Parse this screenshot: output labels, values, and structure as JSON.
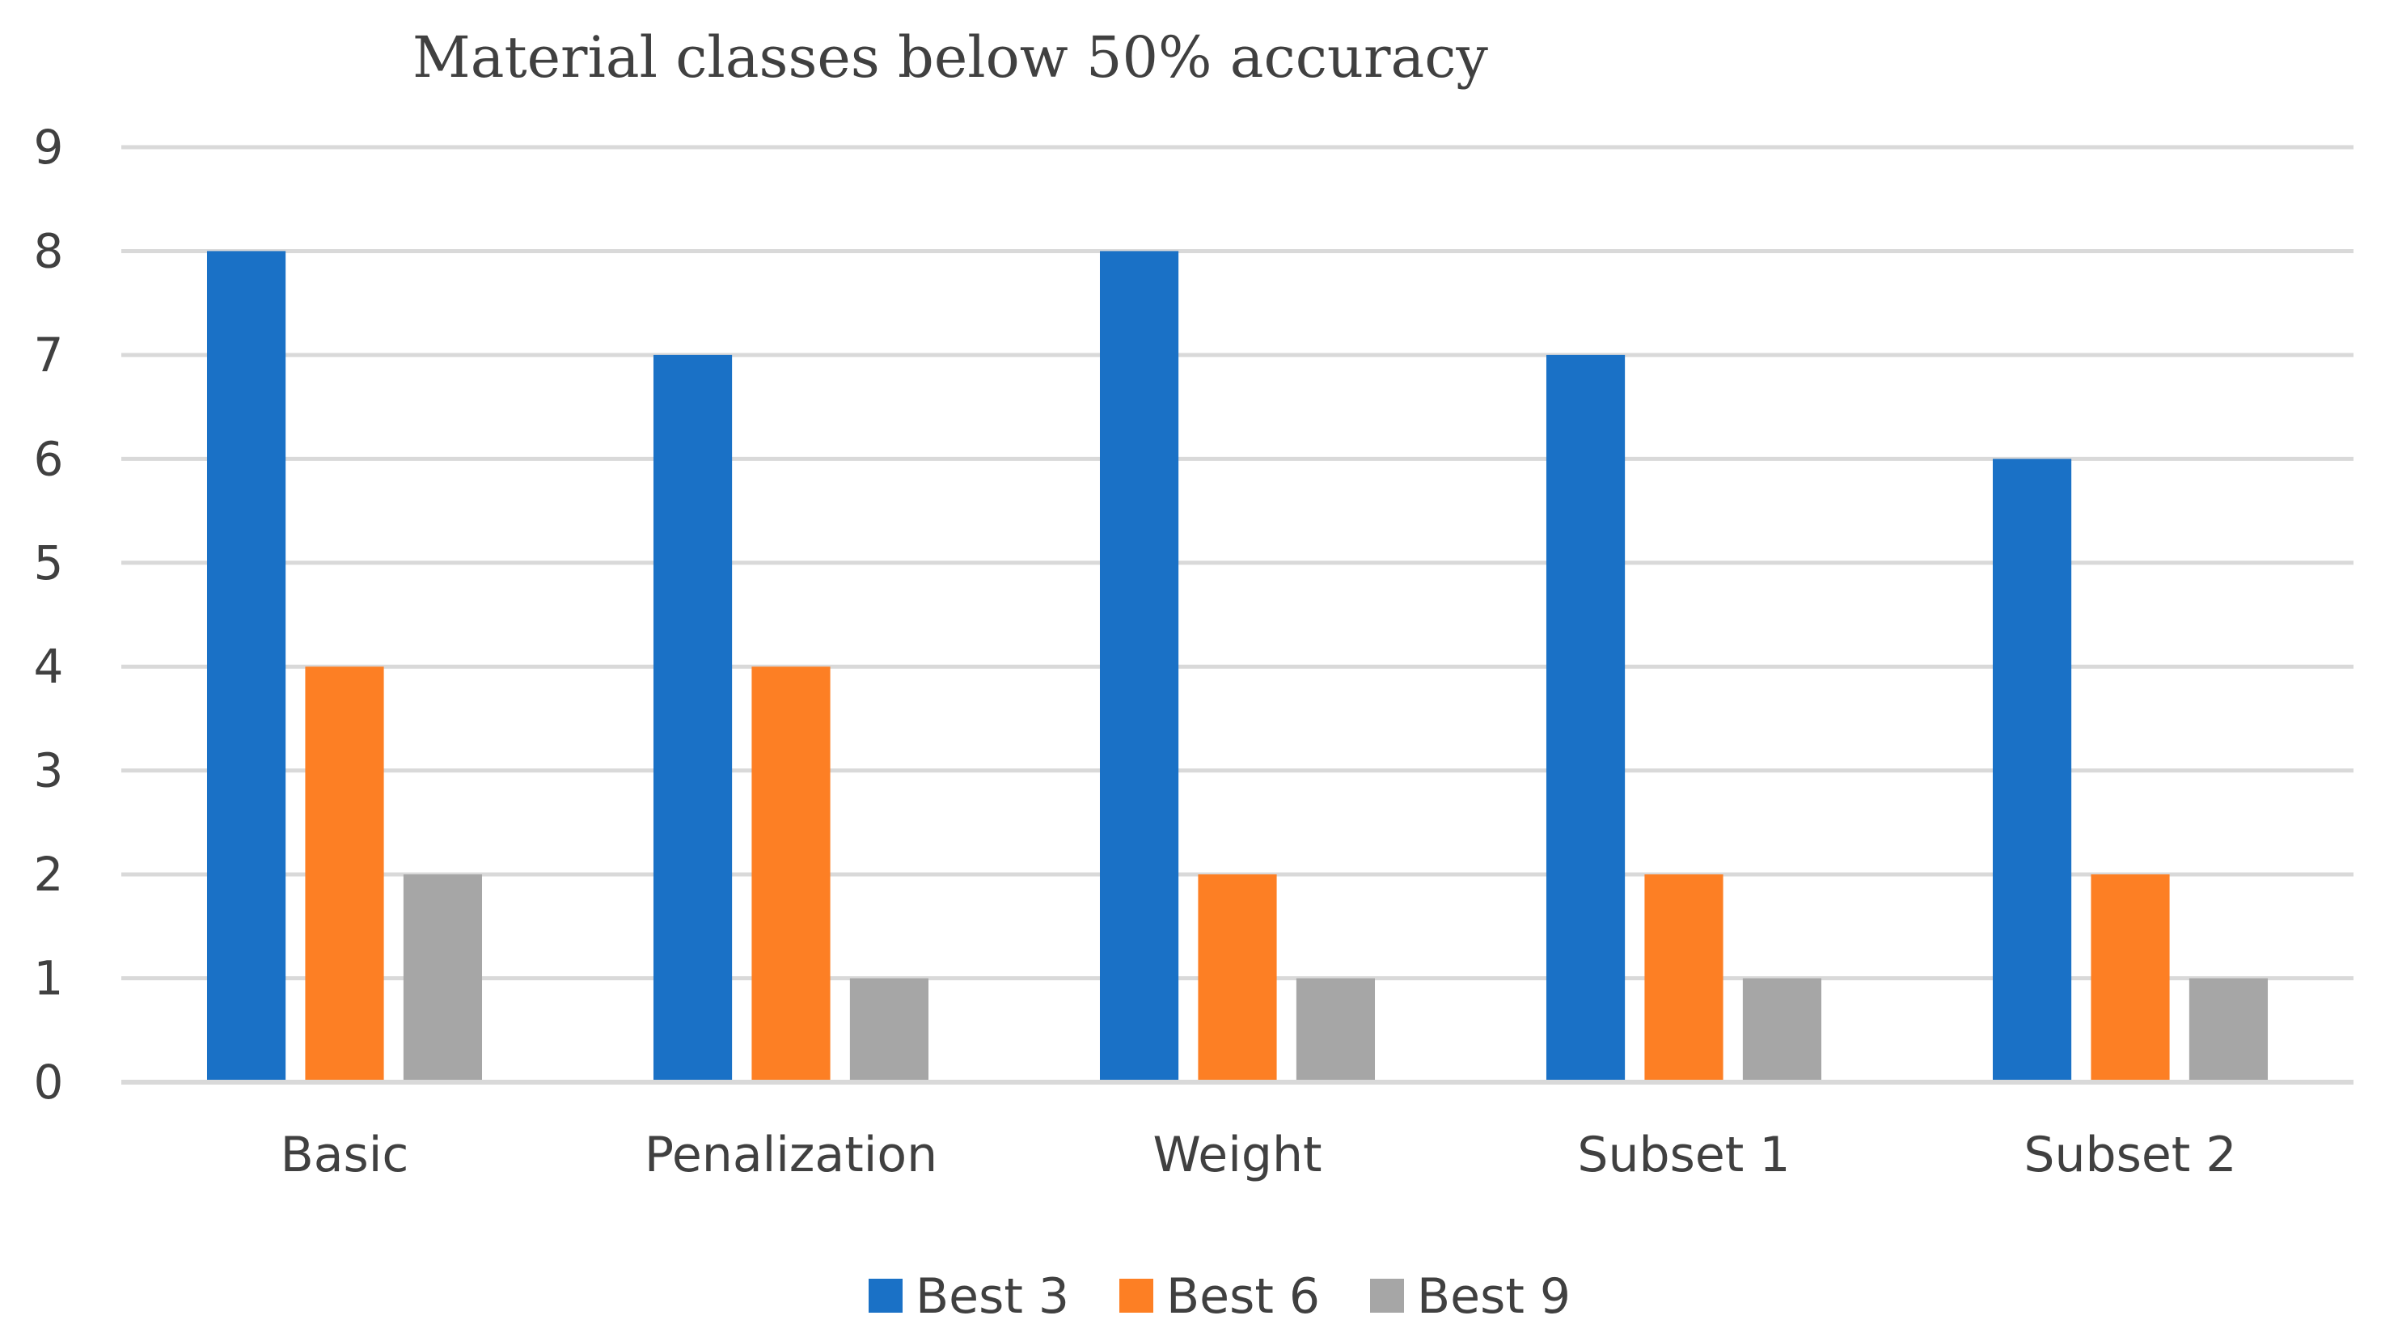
{
  "chart_data": {
    "type": "bar",
    "title": "Material classes below 50% accuracy",
    "xlabel": "",
    "ylabel": "",
    "ylim": [
      0,
      9
    ],
    "yticks": [
      "0",
      "1",
      "2",
      "3",
      "4",
      "5",
      "6",
      "7",
      "8",
      "9"
    ],
    "grid": true,
    "legend_position": "bottom",
    "categories": [
      "Basic",
      "Penalization",
      "Weight",
      "Subset 1",
      "Subset 2"
    ],
    "series": [
      {
        "name": "Best 3",
        "color": "#1a71c6",
        "values": [
          8,
          7,
          8,
          7,
          6
        ]
      },
      {
        "name": "Best 6",
        "color": "#fd7f24",
        "values": [
          4,
          4,
          2,
          2,
          2
        ]
      },
      {
        "name": "Best 9",
        "color": "#a6a6a6",
        "values": [
          2,
          1,
          1,
          1,
          1
        ]
      }
    ]
  }
}
